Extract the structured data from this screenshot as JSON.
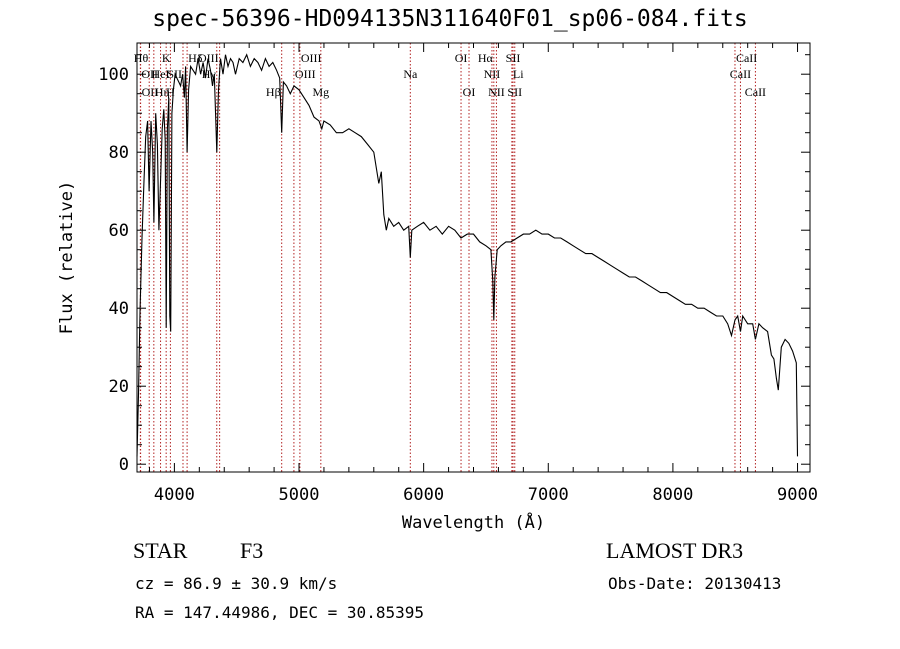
{
  "title": "spec-56396-HD094135N311640F01_sp06-084.fits",
  "footer": {
    "object_type": "STAR",
    "spectral_class": "F3",
    "survey": "LAMOST DR3",
    "cz": "cz = 86.9 ± 30.9 km/s",
    "obs_date": "Obs-Date: 20130413",
    "radec": "RA = 147.44986, DEC =  30.85395"
  },
  "chart_data": {
    "type": "line",
    "title": "spec-56396-HD094135N311640F01_sp06-084.fits",
    "xlabel": "Wavelength (Å)",
    "ylabel": "Flux (relative)",
    "xlim": [
      3700,
      9100
    ],
    "ylim": [
      -2,
      108
    ],
    "xticks": [
      4000,
      5000,
      6000,
      7000,
      8000,
      9000
    ],
    "yticks": [
      0,
      20,
      40,
      60,
      80,
      100
    ],
    "grid": false,
    "line_color": "#000000",
    "marker_line_color": "#b22222",
    "series": [
      {
        "points": [
          [
            3700,
            2
          ],
          [
            3712,
            18
          ],
          [
            3725,
            40
          ],
          [
            3740,
            58
          ],
          [
            3755,
            72
          ],
          [
            3770,
            84
          ],
          [
            3785,
            88
          ],
          [
            3797,
            70
          ],
          [
            3812,
            88
          ],
          [
            3826,
            80
          ],
          [
            3836,
            62
          ],
          [
            3850,
            90
          ],
          [
            3864,
            82
          ],
          [
            3876,
            60
          ],
          [
            3889,
            73
          ],
          [
            3902,
            86
          ],
          [
            3915,
            91
          ],
          [
            3926,
            83
          ],
          [
            3934,
            35
          ],
          [
            3944,
            86
          ],
          [
            3955,
            94
          ],
          [
            3963,
            38
          ],
          [
            3970,
            34
          ],
          [
            3980,
            90
          ],
          [
            3992,
            96
          ],
          [
            4006,
            100
          ],
          [
            4020,
            99
          ],
          [
            4035,
            98
          ],
          [
            4050,
            97
          ],
          [
            4066,
            100
          ],
          [
            4080,
            94
          ],
          [
            4090,
            102
          ],
          [
            4102,
            80
          ],
          [
            4114,
            96
          ],
          [
            4130,
            102
          ],
          [
            4150,
            101
          ],
          [
            4170,
            100
          ],
          [
            4190,
            104
          ],
          [
            4210,
            100
          ],
          [
            4230,
            103
          ],
          [
            4250,
            99
          ],
          [
            4270,
            104
          ],
          [
            4290,
            101
          ],
          [
            4306,
            97
          ],
          [
            4320,
            100
          ],
          [
            4340,
            80
          ],
          [
            4354,
            96
          ],
          [
            4370,
            104
          ],
          [
            4390,
            100
          ],
          [
            4410,
            105
          ],
          [
            4430,
            102
          ],
          [
            4450,
            104
          ],
          [
            4470,
            103
          ],
          [
            4490,
            100
          ],
          [
            4520,
            104
          ],
          [
            4550,
            103
          ],
          [
            4580,
            105
          ],
          [
            4610,
            102
          ],
          [
            4640,
            104
          ],
          [
            4670,
            103
          ],
          [
            4700,
            101
          ],
          [
            4730,
            104
          ],
          [
            4760,
            102
          ],
          [
            4790,
            103
          ],
          [
            4820,
            101
          ],
          [
            4845,
            99
          ],
          [
            4861,
            85
          ],
          [
            4875,
            98
          ],
          [
            4900,
            97
          ],
          [
            4930,
            95
          ],
          [
            4960,
            97
          ],
          [
            5000,
            96
          ],
          [
            5040,
            94
          ],
          [
            5080,
            92
          ],
          [
            5120,
            89
          ],
          [
            5160,
            88
          ],
          [
            5183,
            86
          ],
          [
            5200,
            88
          ],
          [
            5250,
            87
          ],
          [
            5300,
            85
          ],
          [
            5350,
            85
          ],
          [
            5400,
            86
          ],
          [
            5450,
            85
          ],
          [
            5500,
            84
          ],
          [
            5550,
            82
          ],
          [
            5600,
            80
          ],
          [
            5640,
            72
          ],
          [
            5660,
            75
          ],
          [
            5680,
            64
          ],
          [
            5700,
            60
          ],
          [
            5720,
            63
          ],
          [
            5760,
            61
          ],
          [
            5800,
            62
          ],
          [
            5840,
            60
          ],
          [
            5880,
            61
          ],
          [
            5893,
            53
          ],
          [
            5905,
            60
          ],
          [
            5950,
            61
          ],
          [
            6000,
            62
          ],
          [
            6050,
            60
          ],
          [
            6100,
            61
          ],
          [
            6150,
            59
          ],
          [
            6200,
            61
          ],
          [
            6250,
            60
          ],
          [
            6300,
            58
          ],
          [
            6350,
            59
          ],
          [
            6400,
            59
          ],
          [
            6450,
            57
          ],
          [
            6500,
            56
          ],
          [
            6540,
            55
          ],
          [
            6555,
            47
          ],
          [
            6563,
            37
          ],
          [
            6572,
            48
          ],
          [
            6590,
            55
          ],
          [
            6620,
            56
          ],
          [
            6660,
            57
          ],
          [
            6700,
            57
          ],
          [
            6750,
            58
          ],
          [
            6800,
            59
          ],
          [
            6850,
            59
          ],
          [
            6900,
            60
          ],
          [
            6950,
            59
          ],
          [
            7000,
            59
          ],
          [
            7050,
            58
          ],
          [
            7100,
            58
          ],
          [
            7150,
            57
          ],
          [
            7200,
            56
          ],
          [
            7250,
            55
          ],
          [
            7300,
            54
          ],
          [
            7350,
            54
          ],
          [
            7400,
            53
          ],
          [
            7450,
            52
          ],
          [
            7500,
            51
          ],
          [
            7550,
            50
          ],
          [
            7600,
            49
          ],
          [
            7650,
            48
          ],
          [
            7700,
            48
          ],
          [
            7750,
            47
          ],
          [
            7800,
            46
          ],
          [
            7850,
            45
          ],
          [
            7900,
            44
          ],
          [
            7950,
            44
          ],
          [
            8000,
            43
          ],
          [
            8050,
            42
          ],
          [
            8100,
            41
          ],
          [
            8150,
            41
          ],
          [
            8200,
            40
          ],
          [
            8250,
            40
          ],
          [
            8300,
            39
          ],
          [
            8350,
            38
          ],
          [
            8400,
            38
          ],
          [
            8440,
            36
          ],
          [
            8470,
            33
          ],
          [
            8498,
            37
          ],
          [
            8520,
            38
          ],
          [
            8542,
            34
          ],
          [
            8560,
            38
          ],
          [
            8600,
            36
          ],
          [
            8640,
            36
          ],
          [
            8662,
            32
          ],
          [
            8690,
            36
          ],
          [
            8720,
            35
          ],
          [
            8760,
            34
          ],
          [
            8790,
            28
          ],
          [
            8810,
            27
          ],
          [
            8830,
            22
          ],
          [
            8846,
            19
          ],
          [
            8870,
            30
          ],
          [
            8900,
            32
          ],
          [
            8930,
            31
          ],
          [
            8960,
            29
          ],
          [
            8990,
            26
          ],
          [
            9000,
            2
          ]
        ]
      }
    ],
    "line_markers": [
      {
        "label": "Hθ",
        "x": 3798,
        "row": 1,
        "anchor": "end"
      },
      {
        "label": "OII",
        "x": 3727,
        "row": 2,
        "anchor": "start"
      },
      {
        "label": "OII",
        "x": 3729,
        "row": 3,
        "anchor": "start"
      },
      {
        "label": "Hη",
        "x": 3835,
        "row": 3,
        "anchor": "start"
      },
      {
        "label": "HeI",
        "x": 3889,
        "row": 2,
        "anchor": "middle"
      },
      {
        "label": "K",
        "x": 3934,
        "row": 1,
        "anchor": "middle"
      },
      {
        "label": "SII",
        "x": 4069,
        "row": 2,
        "anchor": "end"
      },
      {
        "label": "H",
        "x": 3968,
        "row": 3,
        "anchor": "middle"
      },
      {
        "label": "Hδ",
        "x": 4102,
        "row": 1,
        "anchor": "start"
      },
      {
        "label": "OIII",
        "x": 4363,
        "row": 1,
        "anchor": "end"
      },
      {
        "label": "Hγ",
        "x": 4340,
        "row": 2,
        "anchor": "end"
      },
      {
        "label": "Hβ",
        "x": 4861,
        "row": 3,
        "anchor": "end"
      },
      {
        "label": "OIII",
        "x": 4959,
        "row": 2,
        "anchor": "start"
      },
      {
        "label": "OIII",
        "x": 5007,
        "row": 1,
        "anchor": "start"
      },
      {
        "label": "Mg",
        "x": 5175,
        "row": 3,
        "anchor": "middle"
      },
      {
        "label": "Na",
        "x": 5893,
        "row": 2,
        "anchor": "middle"
      },
      {
        "label": "OI",
        "x": 6300,
        "row": 1,
        "anchor": "middle"
      },
      {
        "label": "OI",
        "x": 6364,
        "row": 3,
        "anchor": "middle"
      },
      {
        "label": "Hα",
        "x": 6563,
        "row": 1,
        "anchor": "end"
      },
      {
        "label": "NII",
        "x": 6548,
        "row": 2,
        "anchor": "middle"
      },
      {
        "label": "NII",
        "x": 6584,
        "row": 3,
        "anchor": "middle"
      },
      {
        "label": "SII",
        "x": 6717,
        "row": 1,
        "anchor": "middle"
      },
      {
        "label": "Li",
        "x": 6708,
        "row": 2,
        "anchor": "start"
      },
      {
        "label": "SII",
        "x": 6731,
        "row": 3,
        "anchor": "middle"
      },
      {
        "label": "CaII",
        "x": 8498,
        "row": 1,
        "anchor": "start"
      },
      {
        "label": "CaII",
        "x": 8542,
        "row": 2,
        "anchor": "middle"
      },
      {
        "label": "CaII",
        "x": 8662,
        "row": 3,
        "anchor": "middle"
      }
    ]
  }
}
